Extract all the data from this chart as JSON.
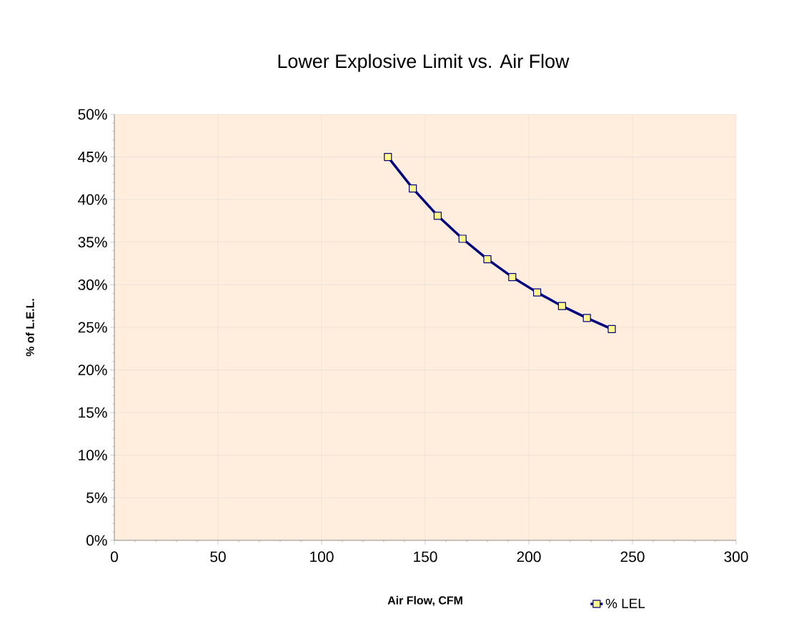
{
  "chart_data": {
    "type": "line",
    "title": "Lower Explosive Limit vs. Air Flow",
    "xlabel": "Air Flow, CFM",
    "ylabel": "% of L.E.L.",
    "x": [
      132,
      144,
      156,
      168,
      180,
      192,
      204,
      216,
      228,
      240
    ],
    "series": [
      {
        "name": "% LEL",
        "color": "#000080",
        "values": [
          45,
          41.3,
          38.1,
          35.4,
          33,
          30.9,
          29.1,
          27.5,
          26.1,
          24.8
        ]
      }
    ],
    "xlim": [
      0,
      300
    ],
    "xticks": [
      0,
      50,
      100,
      150,
      200,
      250,
      300
    ],
    "ylim": [
      0,
      50
    ],
    "yticks": [
      {
        "value": 0,
        "label": "0%"
      },
      {
        "value": 5,
        "label": "5%"
      },
      {
        "value": 10,
        "label": "10%"
      },
      {
        "value": 15,
        "label": "15%"
      },
      {
        "value": 20,
        "label": "20%"
      },
      {
        "value": 25,
        "label": "25%"
      },
      {
        "value": 30,
        "label": "30%"
      },
      {
        "value": 35,
        "label": "35%"
      },
      {
        "value": 40,
        "label": "40%"
      },
      {
        "value": 45,
        "label": "45%"
      },
      {
        "value": 50,
        "label": "50%"
      }
    ],
    "grid": true,
    "legend": "bottom",
    "marker": "square",
    "line_style": "solid"
  }
}
